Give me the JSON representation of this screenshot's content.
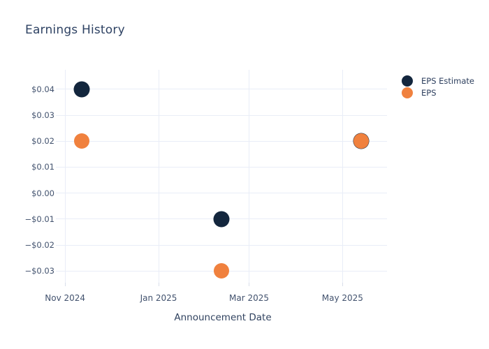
{
  "title": "Earnings History",
  "colors": {
    "background": "#ffffff",
    "title_text": "#2e4263",
    "tick_text": "#42526e",
    "gridline": "#e9edf7",
    "tick_mark": "#d8deea",
    "eps_estimate": "#13263d",
    "eps": "#f0813e"
  },
  "legend": {
    "items": [
      {
        "label": "EPS Estimate",
        "color_key": "eps_estimate"
      },
      {
        "label": "EPS",
        "color_key": "eps"
      }
    ]
  },
  "chart_data": {
    "type": "scatter",
    "title": "Earnings History",
    "xlabel": "Announcement Date",
    "ylabel": "",
    "grid": true,
    "legend_position": "right-top",
    "x_axis": {
      "range": [
        "2024-10-26",
        "2025-05-30"
      ],
      "ticks": [
        {
          "date": "2024-11-01",
          "label": "Nov 2024"
        },
        {
          "date": "2025-01-01",
          "label": "Jan 2025"
        },
        {
          "date": "2025-03-01",
          "label": "Mar 2025"
        },
        {
          "date": "2025-05-01",
          "label": "May 2025"
        }
      ]
    },
    "y_axis": {
      "range": [
        -0.0345,
        0.0475
      ],
      "ticks": [
        {
          "value": 0.04,
          "label": "$0.04"
        },
        {
          "value": 0.03,
          "label": "$0.03"
        },
        {
          "value": 0.02,
          "label": "$0.02"
        },
        {
          "value": 0.01,
          "label": "$0.01"
        },
        {
          "value": 0.0,
          "label": "$0.00"
        },
        {
          "value": -0.01,
          "label": "−$0.01"
        },
        {
          "value": -0.02,
          "label": "−$0.02"
        },
        {
          "value": -0.03,
          "label": "−$0.03"
        }
      ]
    },
    "series": [
      {
        "name": "EPS Estimate",
        "color_key": "eps_estimate",
        "marker_size": 23,
        "points": [
          {
            "date": "2024-11-12",
            "value": 0.04
          },
          {
            "date": "2025-02-11",
            "value": -0.01
          },
          {
            "date": "2025-05-13",
            "value": 0.02
          }
        ]
      },
      {
        "name": "EPS",
        "color_key": "eps",
        "marker_size": 22,
        "points": [
          {
            "date": "2024-11-12",
            "value": 0.02
          },
          {
            "date": "2025-02-11",
            "value": -0.03
          },
          {
            "date": "2025-05-13",
            "value": 0.02
          }
        ]
      }
    ]
  }
}
